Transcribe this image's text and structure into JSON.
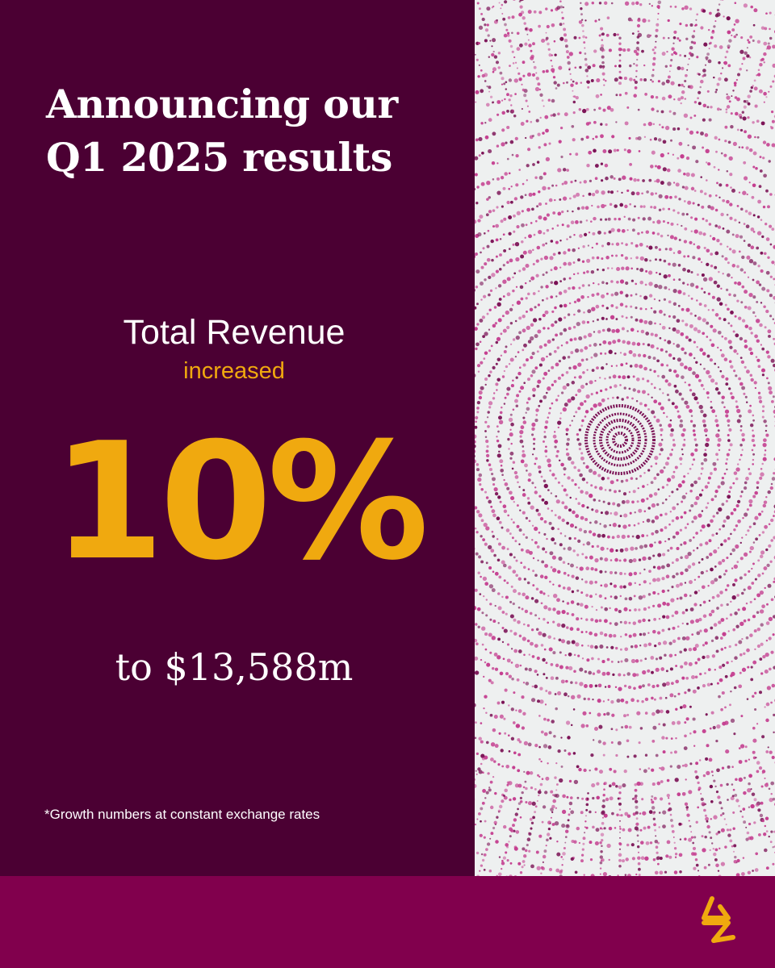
{
  "headline": {
    "line1": "Announcing our",
    "line2": "Q1 2025 results"
  },
  "metric": {
    "label": "Total Revenue",
    "verb": "increased",
    "growth": "10%",
    "result": "to $13,588m"
  },
  "footnote": "*Growth numbers at constant exchange rates",
  "colors": {
    "background_dark": "#4b0033",
    "band": "#81004d",
    "accent_gold": "#f0a90f",
    "artwork_background": "#eef0f0",
    "artwork_dot_pink": "#c43d8f",
    "artwork_dot_dark": "#7a1054"
  },
  "artwork": {
    "name": "concentric-dot-ripple-artwork"
  },
  "logo": {
    "icon": "brand-logo-icon"
  }
}
